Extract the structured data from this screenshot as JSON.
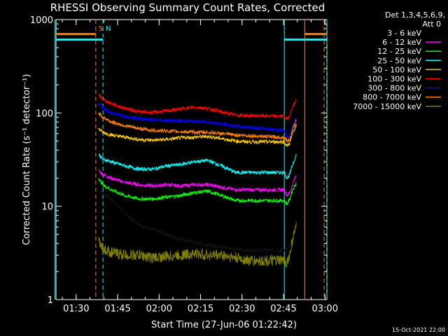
{
  "chart_data": {
    "type": "line",
    "title": "RHESSI Observing Summary Count Rates, Corrected",
    "xlabel": "Start Time (27-Jun-06 01:22:42)",
    "ylabel": "Corrected Count Rate (s⁻¹ detector⁻¹)",
    "yscale": "log",
    "ylim": [
      1,
      1000
    ],
    "y_ticks": [
      "1",
      "10",
      "100",
      "1000"
    ],
    "xlim_minutes": [
      0,
      98
    ],
    "x_ticks": [
      {
        "label": "01:30",
        "minute": 7.3
      },
      {
        "label": "01:45",
        "minute": 22.3
      },
      {
        "label": "02:00",
        "minute": 37.3
      },
      {
        "label": "02:15",
        "minute": 52.3
      },
      {
        "label": "02:30",
        "minute": 67.3
      },
      {
        "label": "02:45",
        "minute": 82.3
      },
      {
        "label": "03:00",
        "minute": 97.3
      }
    ],
    "legend_header": [
      "Det 1,3,4,5,6,9,",
      "Att 0"
    ],
    "legend_position": "right",
    "series": [
      {
        "name": "3 - 6 keV",
        "color": "#000000",
        "t": [
          15.4,
          16.5,
          20,
          24,
          28,
          32,
          36,
          40,
          44,
          48,
          52,
          56,
          60,
          64,
          68,
          72,
          76,
          80,
          82.6,
          83.6,
          84.6,
          85.6,
          87
        ],
        "values": [
          15,
          14,
          12,
          9,
          7,
          6,
          5.5,
          5,
          4.5,
          4.2,
          4,
          3.8,
          3.7,
          3.5,
          3.4,
          3.4,
          3.4,
          3.4,
          3.4,
          3.3,
          4,
          5,
          6
        ]
      },
      {
        "name": "6 - 12 keV",
        "color": "#ff00ff",
        "t": [
          15.4,
          17,
          20,
          25,
          30,
          35,
          40,
          45,
          50,
          55,
          60,
          65,
          70,
          75,
          80,
          82.6,
          83.6,
          84.6,
          85.6,
          87
        ],
        "values": [
          24,
          22,
          20,
          18,
          17,
          16.5,
          17,
          16.5,
          17,
          17,
          16,
          15,
          15,
          15,
          15,
          15,
          13,
          14,
          17,
          22
        ]
      },
      {
        "name": "12 - 25 keV",
        "color": "#00ff00",
        "t": [
          15.4,
          17,
          20,
          25,
          30,
          35,
          40,
          45,
          50,
          55,
          60,
          65,
          70,
          75,
          80,
          82.6,
          83.6,
          84.6,
          85.6,
          87
        ],
        "values": [
          20,
          17,
          15,
          13,
          12,
          12,
          12.5,
          13,
          14,
          14.5,
          13,
          11.5,
          11.5,
          11.5,
          11.5,
          11.5,
          10.5,
          12,
          15,
          18
        ]
      },
      {
        "name": "25 - 50 keV",
        "color": "#00ffff",
        "t": [
          15.4,
          17,
          20,
          25,
          30,
          35,
          40,
          45,
          50,
          55,
          60,
          65,
          70,
          75,
          80,
          82.6,
          83.6,
          84.6,
          85.6,
          87
        ],
        "values": [
          36,
          32,
          30,
          27,
          25,
          25,
          27,
          28,
          30,
          31,
          27,
          23,
          23,
          23,
          23,
          23,
          20,
          22,
          28,
          36
        ]
      },
      {
        "name": "50 - 100 keV",
        "color": "#ffcc00",
        "t": [
          15.4,
          17,
          20,
          25,
          30,
          35,
          40,
          45,
          50,
          55,
          60,
          65,
          70,
          75,
          80,
          82.6,
          83.6,
          84.6,
          85.6,
          87
        ],
        "values": [
          68,
          62,
          58,
          55,
          52,
          51,
          52,
          54,
          55,
          56,
          53,
          50,
          49,
          49,
          49,
          49,
          44,
          48,
          60,
          75
        ]
      },
      {
        "name": "100 - 300 keV",
        "color": "#ff0000",
        "t": [
          15.4,
          17,
          20,
          25,
          30,
          35,
          40,
          45,
          50,
          55,
          60,
          65,
          70,
          75,
          80,
          82.6,
          83.6,
          84.6,
          85.6,
          87
        ],
        "values": [
          155,
          140,
          125,
          112,
          103,
          101,
          105,
          110,
          115,
          112,
          102,
          95,
          93,
          93,
          92,
          92,
          85,
          95,
          115,
          140
        ]
      },
      {
        "name": "300 - 800 keV",
        "color": "#0000ff",
        "t": [
          15.4,
          17,
          20,
          25,
          30,
          35,
          40,
          45,
          50,
          55,
          60,
          65,
          70,
          75,
          80,
          82.6,
          83.6,
          84.6,
          85.6,
          87
        ],
        "values": [
          125,
          112,
          100,
          92,
          87,
          84,
          83,
          82,
          81,
          80,
          76,
          72,
          70,
          68,
          66,
          65,
          55,
          58,
          72,
          92
        ]
      },
      {
        "name": "800 - 7000 keV",
        "color": "#ff8000",
        "t": [
          15.4,
          17,
          20,
          25,
          30,
          35,
          40,
          45,
          50,
          55,
          60,
          65,
          70,
          75,
          80,
          82.6,
          83.6,
          84.6,
          85.6,
          87
        ],
        "values": [
          100,
          90,
          80,
          73,
          68,
          65,
          64,
          63,
          62,
          62,
          60,
          58,
          57,
          56,
          55,
          55,
          50,
          52,
          65,
          85
        ]
      },
      {
        "name": "7000 - 15000 keV",
        "color": "#808000",
        "t": [
          15.4,
          17,
          20,
          25,
          30,
          35,
          40,
          45,
          50,
          55,
          60,
          65,
          70,
          75,
          80,
          82.6,
          83.6,
          84.6,
          85.6,
          87
        ],
        "values": [
          4.5,
          3.5,
          3.2,
          3,
          3,
          2.8,
          2.9,
          3,
          3.1,
          3,
          3,
          2.8,
          2.6,
          2.6,
          2.6,
          2.6,
          2.5,
          3,
          4.5,
          6
        ]
      }
    ],
    "markers": [
      {
        "label": "S",
        "color": "#ff8000",
        "style": "dashed",
        "minute": 14.4
      },
      {
        "label": "N",
        "color": "#00ffff",
        "style": "dashed",
        "minute": 17
      },
      {
        "label": "",
        "color": "#00ffff",
        "style": "solid",
        "minute": -0.4
      },
      {
        "label": "",
        "color": "#00ffff",
        "style": "solid",
        "minute": 82.6
      },
      {
        "label": "",
        "color": "#ff8000",
        "style": "solid",
        "minute": 90
      },
      {
        "label": "",
        "color": "#ff8000",
        "style": "dashed",
        "minute": 97
      },
      {
        "label": "",
        "color": "#00ffff",
        "style": "dashed",
        "minute": 98
      }
    ],
    "bars_top": [
      {
        "color": "#ff8000",
        "from": 0,
        "to": 14.4,
        "level": 700
      },
      {
        "color": "#00ffff",
        "from": 0,
        "to": 17,
        "level": 610
      },
      {
        "color": "#00ffff",
        "from": 82.6,
        "to": 98,
        "level": 610
      },
      {
        "color": "#ff8000",
        "from": 90,
        "to": 98,
        "level": 700
      }
    ],
    "timestamp": "15-Oct-2021 22:00"
  }
}
